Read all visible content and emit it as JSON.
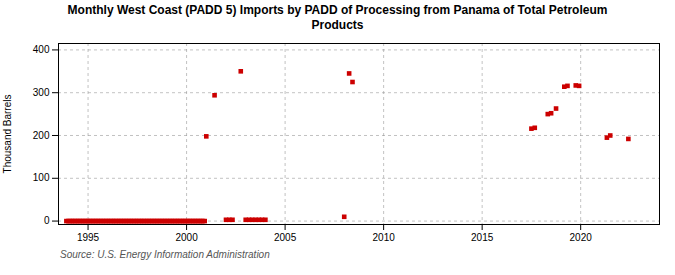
{
  "chart_data": {
    "type": "scatter",
    "title": "Monthly West Coast (PADD 5) Imports by PADD of Processing from Panama of Total Petroleum\nProducts",
    "ylabel": "Thousand Barrels",
    "source": "Source: U.S. Energy Information Administration",
    "color": "#cc0000",
    "marker": "square",
    "grid": true,
    "xlim": [
      1993.5,
      2024.0
    ],
    "ylim": [
      -8,
      415
    ],
    "xticks": [
      1995,
      2000,
      2005,
      2010,
      2015,
      2020
    ],
    "yticks": [
      0,
      100,
      200,
      300,
      400
    ],
    "x": [
      1993.9,
      1994.0,
      1994.08,
      1994.17,
      1994.25,
      1994.33,
      1994.42,
      1994.5,
      1994.58,
      1994.67,
      1994.75,
      1994.83,
      1994.92,
      1995.0,
      1995.08,
      1995.17,
      1995.25,
      1995.33,
      1995.42,
      1995.5,
      1995.58,
      1995.67,
      1995.75,
      1995.83,
      1995.92,
      1996.0,
      1996.08,
      1996.17,
      1996.25,
      1996.33,
      1996.42,
      1996.5,
      1996.58,
      1996.67,
      1996.75,
      1996.83,
      1996.92,
      1997.0,
      1997.08,
      1997.17,
      1997.25,
      1997.33,
      1997.42,
      1997.5,
      1997.58,
      1997.67,
      1997.75,
      1997.83,
      1997.92,
      1998.0,
      1998.08,
      1998.17,
      1998.25,
      1998.33,
      1998.42,
      1998.5,
      1998.58,
      1998.67,
      1998.75,
      1998.83,
      1998.92,
      1999.0,
      1999.08,
      1999.17,
      1999.25,
      1999.33,
      1999.42,
      1999.5,
      1999.58,
      1999.67,
      1999.75,
      1999.83,
      1999.92,
      2000.0,
      2000.08,
      2000.17,
      2000.25,
      2000.33,
      2000.42,
      2000.5,
      2000.58,
      2000.67,
      2000.75,
      2000.83,
      2000.92,
      2001.0,
      2001.42,
      2002.0,
      2002.17,
      2002.33,
      2002.75,
      2003.0,
      2003.17,
      2003.33,
      2003.5,
      2003.67,
      2003.83,
      2004.0,
      2008.0,
      2008.25,
      2008.42,
      2017.5,
      2017.67,
      2018.33,
      2018.5,
      2018.75,
      2019.17,
      2019.33,
      2019.75,
      2019.92,
      2021.33,
      2021.5,
      2022.42
    ],
    "values": [
      0,
      0,
      0,
      0,
      0,
      0,
      0,
      0,
      0,
      0,
      0,
      0,
      0,
      0,
      0,
      0,
      0,
      0,
      0,
      0,
      0,
      0,
      0,
      0,
      0,
      0,
      0,
      0,
      0,
      0,
      0,
      0,
      0,
      0,
      0,
      0,
      0,
      0,
      0,
      0,
      0,
      0,
      0,
      0,
      0,
      0,
      0,
      0,
      0,
      0,
      0,
      0,
      0,
      0,
      0,
      0,
      0,
      0,
      0,
      0,
      0,
      0,
      0,
      0,
      0,
      0,
      0,
      0,
      0,
      0,
      0,
      0,
      0,
      0,
      0,
      0,
      0,
      0,
      0,
      0,
      0,
      0,
      0,
      0,
      0,
      198,
      294,
      3,
      3,
      3,
      350,
      3,
      3,
      3,
      3,
      3,
      3,
      3,
      10,
      345,
      325,
      216,
      218,
      250,
      252,
      263,
      314,
      316,
      317,
      316,
      195,
      200,
      192
    ]
  }
}
